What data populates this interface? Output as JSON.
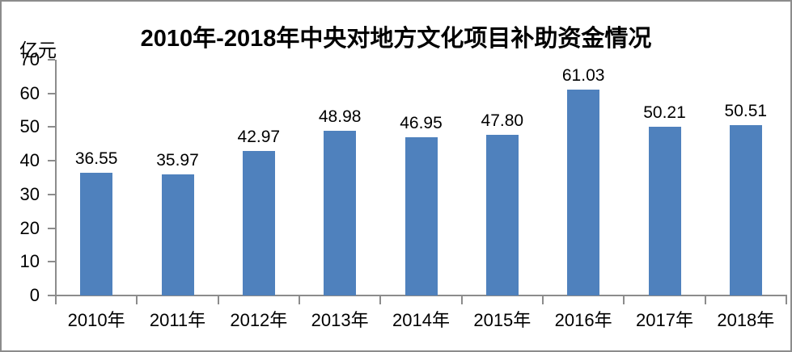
{
  "chart_data": {
    "type": "bar",
    "title": "2010年-2018年中央对地方文化项目补助资金情况",
    "unit_label": "亿元",
    "categories": [
      "2010年",
      "2011年",
      "2012年",
      "2013年",
      "2014年",
      "2015年",
      "2016年",
      "2017年",
      "2018年"
    ],
    "values": [
      36.55,
      35.97,
      42.97,
      48.98,
      46.95,
      47.8,
      61.03,
      50.21,
      50.51
    ],
    "value_labels": [
      "36.55",
      "35.97",
      "42.97",
      "48.98",
      "46.95",
      "47.80",
      "61.03",
      "50.21",
      "50.51"
    ],
    "xlabel": "",
    "ylabel": "亿元",
    "ylim": [
      0,
      70
    ],
    "yticks": [
      0,
      10,
      20,
      30,
      40,
      50,
      60,
      70
    ],
    "grid": false,
    "legend": "none",
    "bar_color": "#4F81BD",
    "axis_color": "#8c8c8c",
    "text_color": "#000000",
    "background_color": "#ffffff"
  }
}
